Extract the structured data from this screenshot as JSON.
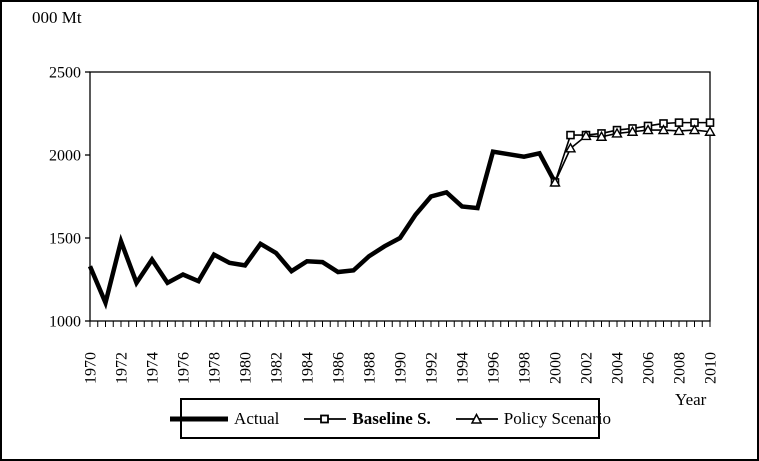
{
  "chart_data": {
    "type": "line",
    "title": "",
    "y_unit_label": "000 Mt",
    "xlabel": "Year",
    "ylabel": "",
    "x_start": 1970,
    "x_end": 2010,
    "x_tick_label_step": 2,
    "minor_xtick_every": 0.5,
    "ylim": [
      1000,
      2500
    ],
    "yticks": [
      1000,
      1500,
      2000,
      2500
    ],
    "grid": false,
    "legend_position": "bottom",
    "series": [
      {
        "name": "Actual",
        "marker": "none",
        "line_weight": "thick",
        "x_start_year": 1970,
        "values": [
          1330,
          1110,
          1480,
          1230,
          1370,
          1230,
          1280,
          1240,
          1400,
          1350,
          1335,
          1465,
          1410,
          1300,
          1360,
          1355,
          1295,
          1305,
          1390,
          1450,
          1500,
          1640,
          1750,
          1775,
          1690,
          1680,
          2020,
          2005,
          1990,
          2010,
          1835
        ]
      },
      {
        "name": "Baseline S.",
        "marker": "square",
        "line_weight": "thin",
        "x_start_year": 2000,
        "values": [
          1835,
          2120,
          2120,
          2130,
          2150,
          2160,
          2175,
          2190,
          2195,
          2195,
          2195
        ]
      },
      {
        "name": "Policy Scenario",
        "marker": "triangle",
        "line_weight": "thin",
        "x_start_year": 2000,
        "values": [
          1835,
          2040,
          2115,
          2110,
          2130,
          2140,
          2150,
          2150,
          2145,
          2150,
          2140
        ]
      }
    ]
  }
}
